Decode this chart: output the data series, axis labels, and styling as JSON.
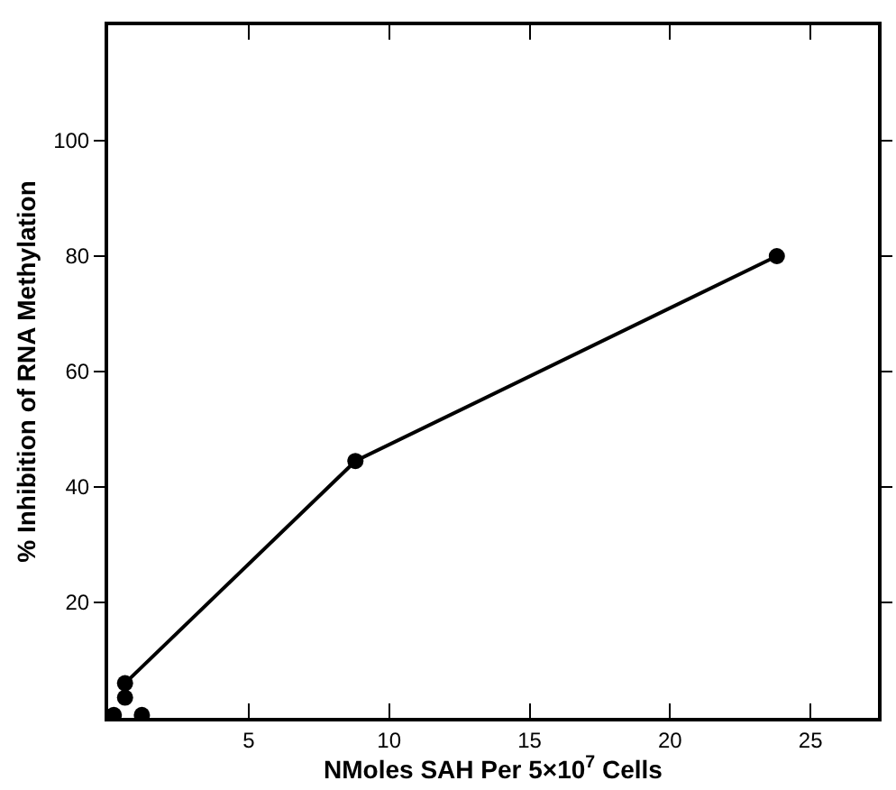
{
  "chart_data": {
    "type": "line",
    "xlabel": "NMoles SAH Per 5×10$^{7}$ Cells",
    "ylabel": "% Inhibition of RNA Methylation",
    "xlim": [
      0,
      27.4
    ],
    "ylim": [
      0,
      120
    ],
    "xticks": [
      5,
      10,
      15,
      20,
      25
    ],
    "yticks": [
      20,
      40,
      60,
      80,
      100
    ],
    "series": [
      {
        "type": "scatter",
        "marker": "circle",
        "color": "#000000",
        "x": [
          0.2,
          0.6,
          1.2
        ],
        "values": [
          0.5,
          3.5,
          0.5
        ]
      },
      {
        "marker": "circle",
        "color": "#000000",
        "x": [
          0.6,
          8.8,
          23.8
        ],
        "values": [
          6,
          44.5,
          80
        ]
      }
    ]
  }
}
